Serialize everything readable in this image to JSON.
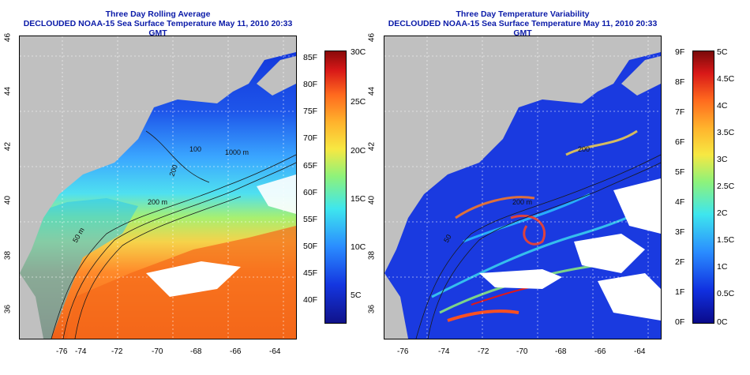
{
  "panels": [
    {
      "title": "Three Day Rolling Average",
      "subtitle": "DECLOUDED NOAA-15 Sea Surface Temperature May 11, 2010 20:33 GMT",
      "contour_labels": [
        "1000 m",
        "200 m",
        "50 m",
        "100",
        "200"
      ],
      "colorbar_left_labels": [
        "85F",
        "80F",
        "75F",
        "70F",
        "65F",
        "60F",
        "55F",
        "50F",
        "45F",
        "40F"
      ],
      "colorbar_right_labels": [
        "30C",
        "25C",
        "20C",
        "15C",
        "10C",
        "5C"
      ]
    },
    {
      "title": "Three Day Temperature Variability",
      "subtitle": "DECLOUDED NOAA-15 Sea Surface Temperature May 11, 2010 20:33 GMT",
      "contour_labels": [
        "200 m",
        "50",
        "200"
      ],
      "colorbar_left_labels": [
        "9F",
        "8F",
        "7F",
        "6F",
        "5F",
        "4F",
        "3F",
        "2F",
        "1F",
        "0F"
      ],
      "colorbar_right_labels": [
        "5C",
        "4.5C",
        "4C",
        "3.5C",
        "3C",
        "2.5C",
        "2C",
        "1.5C",
        "1C",
        "0.5C",
        "0C"
      ]
    }
  ],
  "x_ticks": [
    "-76",
    "-74",
    "-72",
    "-70",
    "-68",
    "-66",
    "-64"
  ],
  "y_ticks": [
    "46",
    "44",
    "42",
    "40",
    "38",
    "36"
  ],
  "colors": {
    "title": "#0a1aa8",
    "land": "#c0c0c0",
    "cloud": "#ffffff"
  }
}
